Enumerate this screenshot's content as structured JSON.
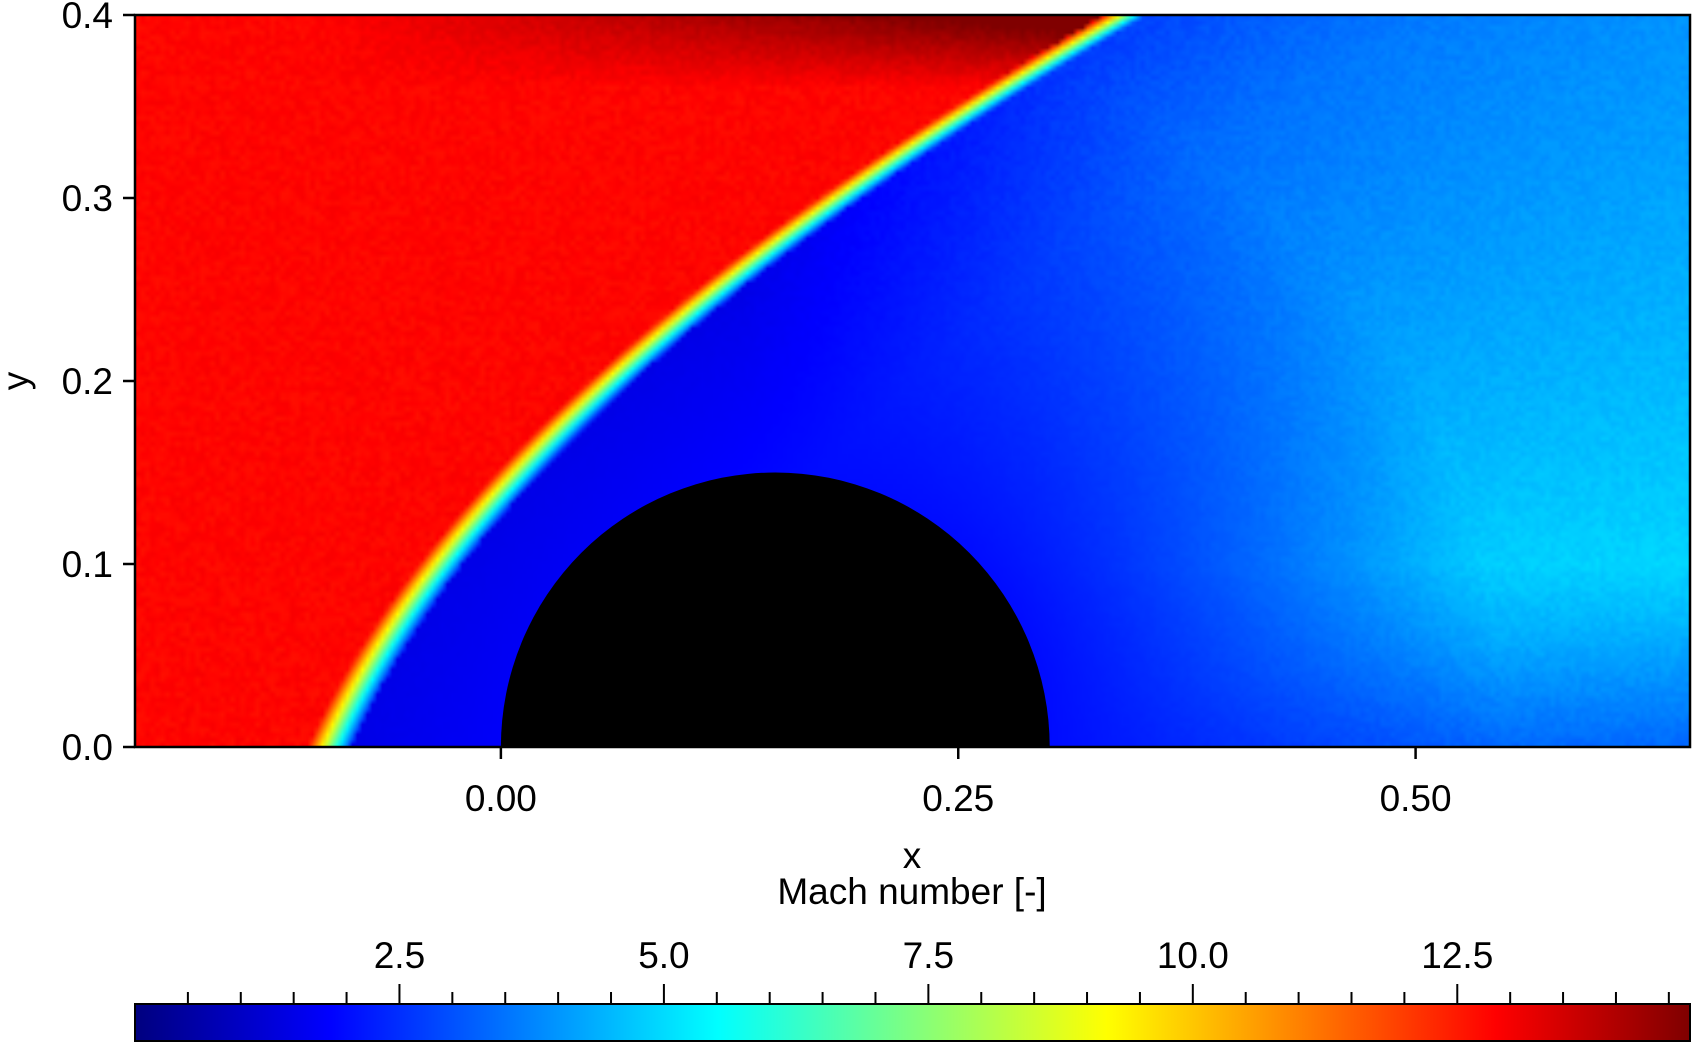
{
  "chart_data": {
    "type": "heatmap",
    "title": "",
    "xlabel": "x",
    "ylabel": "y",
    "xlim": [
      -0.2,
      0.65
    ],
    "ylim": [
      0.0,
      0.4
    ],
    "x_ticks": [
      "0.00",
      "0.25",
      "0.50"
    ],
    "x_tick_values": [
      0.0,
      0.25,
      0.5
    ],
    "y_ticks": [
      "0.0",
      "0.1",
      "0.2",
      "0.3",
      "0.4"
    ],
    "y_tick_values": [
      0.0,
      0.1,
      0.2,
      0.3,
      0.4
    ],
    "grid": false,
    "field": {
      "quantity": "Mach number",
      "freestream_value": 12.8,
      "shock_standoff_x_at_y0": -0.1,
      "post_shock_low_value": 1.5,
      "wake_high_value": 5.0
    },
    "obstacle": {
      "shape": "semicircle",
      "center_x": 0.15,
      "center_y": 0.0,
      "radius": 0.15,
      "color": "#000000"
    },
    "colorbar": {
      "label": "Mach number [-]",
      "placement": "bottom",
      "colormap": "jet",
      "range": [
        0.0,
        14.7
      ],
      "ticks": [
        "2.5",
        "5.0",
        "7.5",
        "10.0",
        "12.5"
      ],
      "tick_values": [
        2.5,
        5.0,
        7.5,
        10.0,
        12.5
      ],
      "minor_step": 0.5
    }
  }
}
